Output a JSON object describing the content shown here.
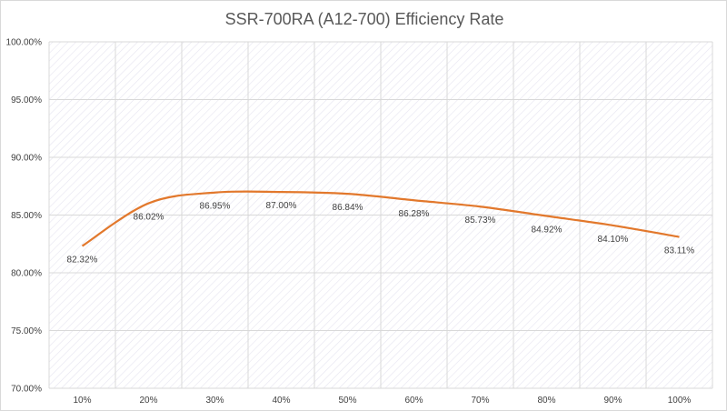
{
  "chart_data": {
    "type": "line",
    "title": "SSR-700RA (A12-700) Efficiency Rate",
    "xlabel": "",
    "ylabel": "",
    "categories": [
      "10%",
      "20%",
      "30%",
      "40%",
      "50%",
      "60%",
      "70%",
      "80%",
      "90%",
      "100%"
    ],
    "series": [
      {
        "name": "",
        "values": [
          82.32,
          86.02,
          86.95,
          87.0,
          86.84,
          86.28,
          85.73,
          84.92,
          84.1,
          83.11
        ],
        "data_labels": [
          "82.32%",
          "86.02%",
          "86.95%",
          "87.00%",
          "86.84%",
          "86.28%",
          "85.73%",
          "84.92%",
          "84.10%",
          "83.11%"
        ],
        "color": "#e2782c"
      }
    ],
    "ylim": [
      70,
      100
    ],
    "yticks": [
      70,
      75,
      80,
      85,
      90,
      95,
      100
    ],
    "ytick_labels": [
      "70.00%",
      "75.00%",
      "80.00%",
      "85.00%",
      "90.00%",
      "95.00%",
      "100.00%"
    ],
    "grid": true,
    "legend": "none",
    "colors": {
      "line": "#e2782c",
      "grid": "#d9d9d9",
      "hatch": "#e6e4f0"
    }
  }
}
